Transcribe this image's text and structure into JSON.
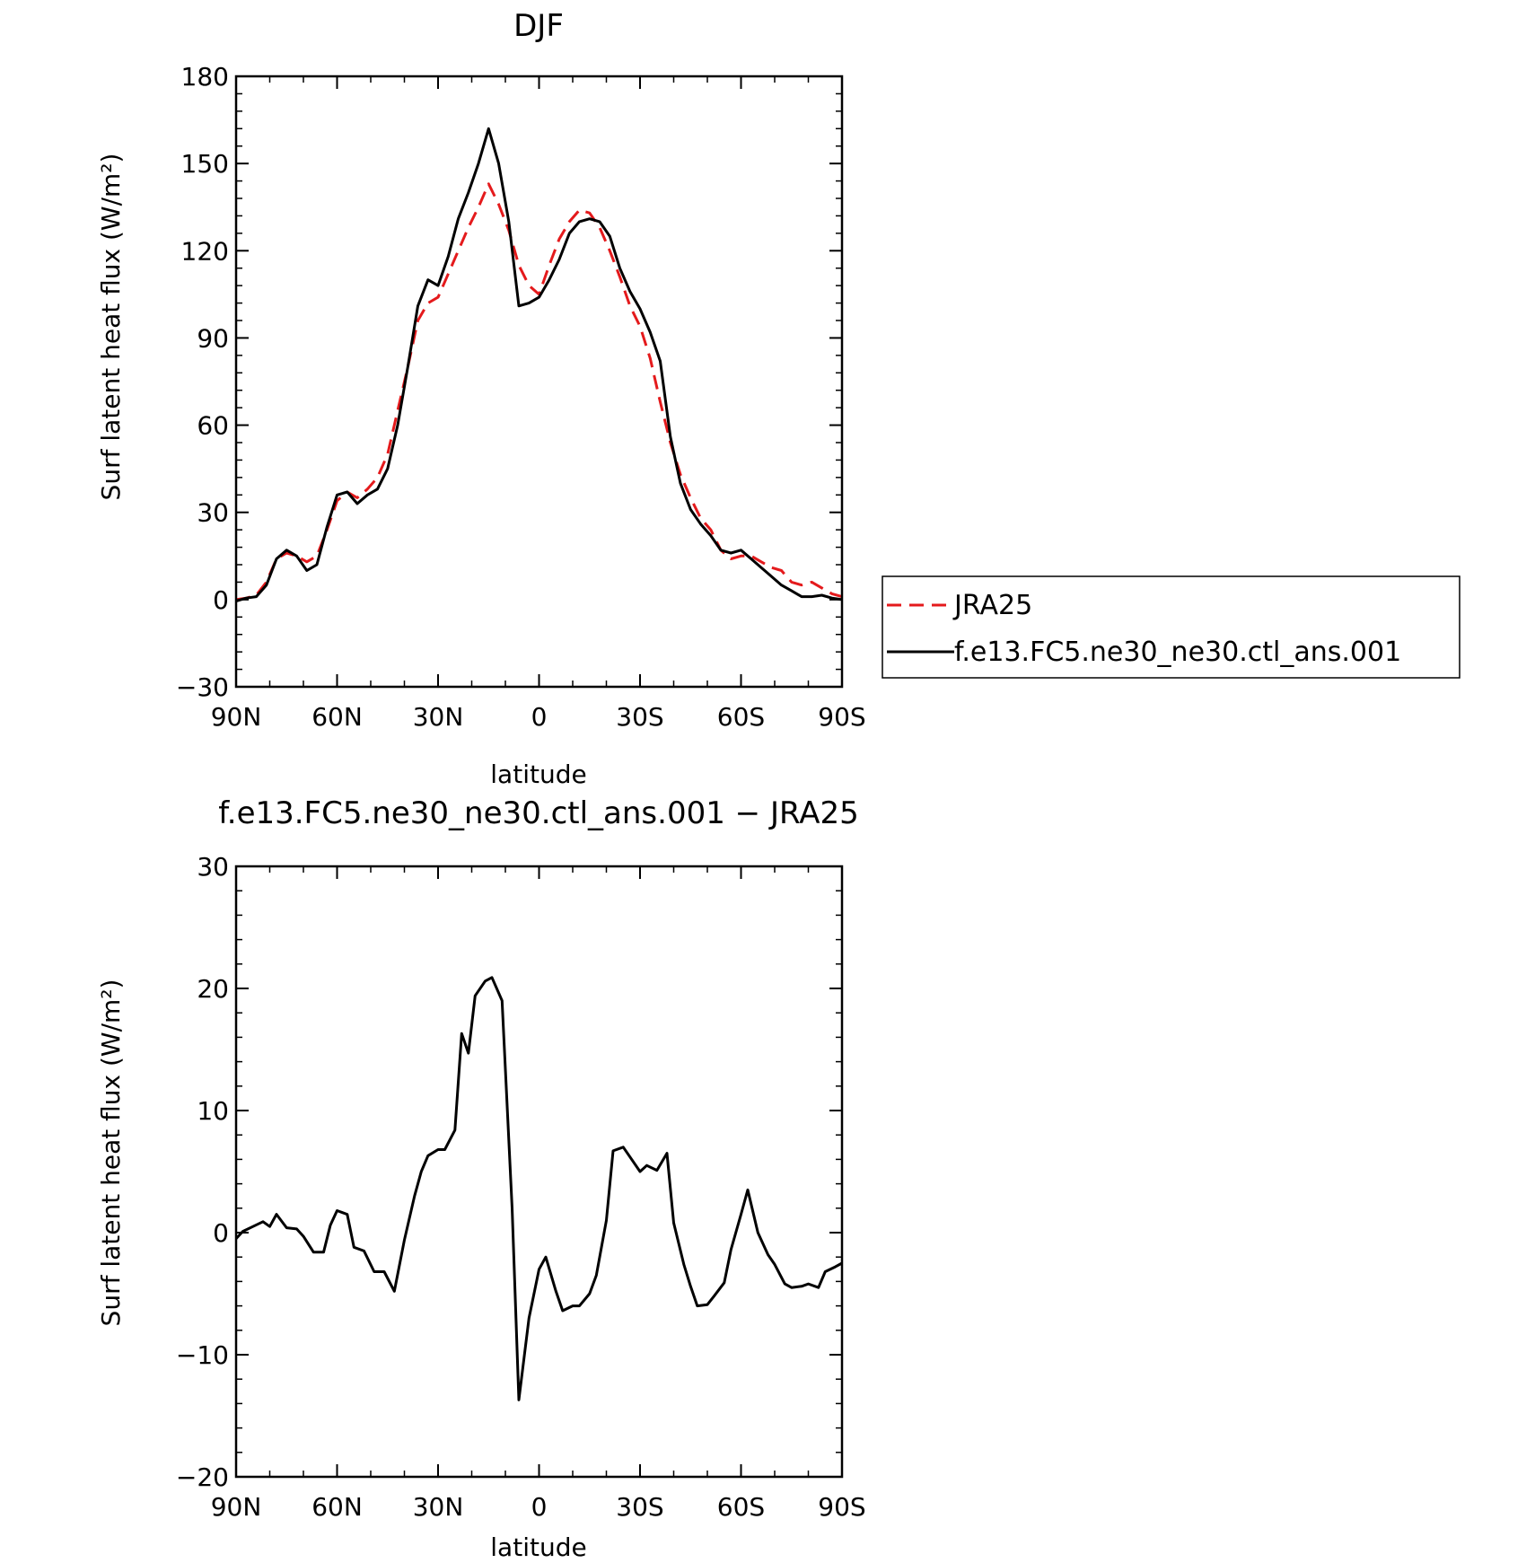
{
  "chart_data": [
    {
      "type": "line",
      "title": "DJF",
      "xlabel": "latitude",
      "ylabel": "Surf latent heat flux (W/m²)",
      "xlim": [
        90,
        -90
      ],
      "ylim": [
        -30,
        180
      ],
      "xticks": [
        90,
        60,
        30,
        0,
        -30,
        -60,
        -90
      ],
      "xtick_labels": [
        "90N",
        "60N",
        "30N",
        "0",
        "30S",
        "60S",
        "90S"
      ],
      "yticks": [
        -30,
        0,
        30,
        60,
        90,
        120,
        150,
        180
      ],
      "ytick_labels": [
        "−30",
        "0",
        "30",
        "60",
        "90",
        "120",
        "150",
        "180"
      ],
      "legend_placement": "right",
      "series": [
        {
          "name": "JRA25",
          "color": "#e41a1c",
          "style": "dashed",
          "x": [
            90,
            87,
            84,
            81,
            78,
            75,
            72,
            69,
            66,
            63,
            60,
            57,
            54,
            51,
            48,
            45,
            42,
            39,
            36,
            33,
            30,
            27,
            24,
            21,
            18,
            15,
            12,
            9,
            6,
            3,
            0,
            -3,
            -6,
            -9,
            -12,
            -15,
            -18,
            -21,
            -24,
            -27,
            -30,
            -33,
            -36,
            -39,
            -42,
            -45,
            -48,
            -51,
            -54,
            -57,
            -60,
            -63,
            -66,
            -69,
            -72,
            -75,
            -78,
            -81,
            -84,
            -87,
            -90
          ],
          "y": [
            0,
            0.5,
            1.5,
            6,
            14,
            16,
            15,
            13,
            15,
            24,
            34,
            37,
            35,
            38,
            42,
            50,
            65,
            80,
            96,
            102,
            104,
            112,
            120,
            128,
            135,
            143,
            136,
            127,
            115,
            108,
            105,
            115,
            124,
            130,
            134,
            133,
            128,
            120,
            111,
            101,
            94,
            83,
            68,
            54,
            43,
            35,
            28,
            24,
            17,
            14,
            15,
            15,
            13,
            11,
            10,
            6,
            5,
            6,
            4,
            2,
            1
          ]
        },
        {
          "name": "f.e13.FC5.ne30_ne30.ctl_ans.001",
          "color": "#000000",
          "style": "solid",
          "x": [
            90,
            87,
            84,
            81,
            78,
            75,
            72,
            69,
            66,
            63,
            60,
            57,
            54,
            51,
            48,
            45,
            42,
            39,
            36,
            33,
            30,
            27,
            24,
            21,
            18,
            15,
            12,
            9,
            6,
            3,
            0,
            -3,
            -6,
            -9,
            -12,
            -15,
            -18,
            -21,
            -24,
            -27,
            -30,
            -33,
            -36,
            -39,
            -42,
            -45,
            -48,
            -51,
            -54,
            -57,
            -60,
            -63,
            -66,
            -69,
            -72,
            -75,
            -78,
            -81,
            -84,
            -87,
            -90
          ],
          "y": [
            -0.5,
            0.5,
            1,
            5,
            14,
            17,
            15,
            10,
            12,
            25,
            36,
            37,
            33,
            36,
            38,
            45,
            60,
            80,
            101,
            110,
            108,
            118,
            131,
            140,
            150,
            162,
            150,
            130,
            101,
            102,
            104,
            110,
            117,
            126,
            130,
            131,
            130,
            125,
            114,
            106,
            100,
            92,
            82,
            56,
            40,
            31,
            26,
            22,
            17,
            16,
            17,
            14,
            11,
            8,
            5,
            3,
            1,
            1,
            1.5,
            0.5,
            0
          ]
        }
      ]
    },
    {
      "type": "line",
      "title": "f.e13.FC5.ne30_ne30.ctl_ans.001 − JRA25",
      "xlabel": "latitude",
      "ylabel": "Surf latent heat flux (W/m²)",
      "xlim": [
        90,
        -90
      ],
      "ylim": [
        -20,
        30
      ],
      "xticks": [
        90,
        60,
        30,
        0,
        -30,
        -60,
        -90
      ],
      "xtick_labels": [
        "90N",
        "60N",
        "30N",
        "0",
        "30S",
        "60S",
        "90S"
      ],
      "yticks": [
        -20,
        -10,
        0,
        10,
        20,
        30
      ],
      "ytick_labels": [
        "−20",
        "−10",
        "0",
        "10",
        "20",
        "30"
      ],
      "series": [
        {
          "color": "#000000",
          "style": "solid",
          "x": [
            90,
            88,
            85,
            82,
            80,
            78,
            75,
            72,
            70,
            67,
            64,
            62,
            60,
            57,
            55,
            52,
            49,
            46,
            43,
            40,
            37,
            35,
            33,
            30,
            28,
            25,
            23,
            21,
            19,
            16,
            14,
            11,
            8,
            6,
            3,
            0,
            -2,
            -5,
            -7,
            -10,
            -12,
            -15,
            -17,
            -20,
            -22,
            -25,
            -27,
            -30,
            -32,
            -35,
            -38,
            -40,
            -43,
            -45,
            -47,
            -50,
            -52,
            -55,
            -57,
            -60,
            -62,
            -65,
            -68,
            -70,
            -73,
            -75,
            -78,
            -80,
            -83,
            -85,
            -88,
            -90
          ],
          "y": [
            -0.5,
            0.1,
            0.5,
            0.9,
            0.5,
            1.5,
            0.4,
            0.3,
            -0.3,
            -1.6,
            -1.6,
            0.6,
            1.8,
            1.5,
            -1.2,
            -1.5,
            -3.2,
            -3.2,
            -4.8,
            -0.6,
            3,
            5,
            6.3,
            6.8,
            6.8,
            8.4,
            16.3,
            14.7,
            19.4,
            20.6,
            20.9,
            19,
            2,
            -13.7,
            -7,
            -3,
            -2,
            -4.8,
            -6.4,
            -6,
            -6,
            -5,
            -3.5,
            1,
            6.7,
            7,
            6.2,
            5,
            5.5,
            5.1,
            6.5,
            0.8,
            -2.6,
            -4.4,
            -6,
            -5.9,
            -5.2,
            -4.1,
            -1.4,
            1.5,
            3.5,
            0,
            -1.8,
            -2.6,
            -4.2,
            -4.5,
            -4.4,
            -4.2,
            -4.5,
            -3.2,
            -2.8,
            -2.5
          ]
        }
      ]
    }
  ]
}
